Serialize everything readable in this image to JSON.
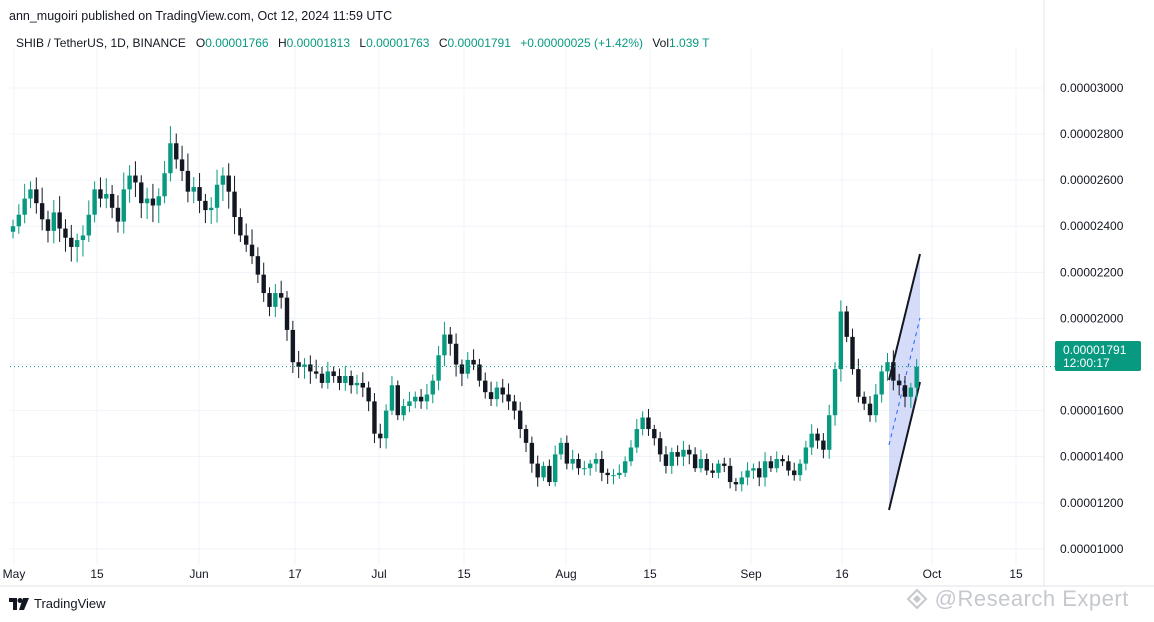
{
  "header": {
    "published": "ann_mugoiri published on TradingView.com, Oct 12, 2024 11:59 UTC"
  },
  "legend": {
    "symbol": "SHIB / TetherUS, 1D, BINANCE",
    "o_label": "O",
    "o_value": "0.00001766",
    "h_label": "H",
    "h_value": "0.00001813",
    "l_label": "L",
    "l_value": "0.00001763",
    "c_label": "C",
    "c_value": "0.00001791",
    "change": "+0.00000025 (+1.42%)",
    "vol_label": "Vol",
    "vol_value": "1.039 T"
  },
  "price_tag": {
    "price": "0.00001791",
    "countdown": "12:00:17",
    "value": 1.791e-05
  },
  "colors": {
    "up": "#089981",
    "down": "#131722",
    "tag": "#089981",
    "grid": "#f0f3fa",
    "channel": "#b7c5f5"
  },
  "footer": {
    "brand": "TradingView",
    "watermark": "@Research Expert"
  },
  "chart_data": {
    "type": "candlestick",
    "y_axis": {
      "ticks": [
        "0.00001000",
        "0.00001200",
        "0.00001400",
        "0.00001600",
        "0.00001800",
        "0.00002000",
        "0.00002200",
        "0.00002400",
        "0.00002600",
        "0.00002800",
        "0.00003000"
      ],
      "ylim": [
        9.3e-06,
        3.13e-05
      ]
    },
    "x_axis": {
      "ticks": [
        "May",
        "15",
        "Jun",
        "17",
        "Jul",
        "15",
        "Aug",
        "15",
        "Sep",
        "16",
        "Oct",
        "15"
      ]
    },
    "grid": true,
    "close_series": [
      2.4e-05,
      2.45e-05,
      2.52e-05,
      2.56e-05,
      2.5e-05,
      2.43e-05,
      2.38e-05,
      2.46e-05,
      2.39e-05,
      2.35e-05,
      2.31e-05,
      2.34e-05,
      2.36e-05,
      2.45e-05,
      2.56e-05,
      2.52e-05,
      2.54e-05,
      2.48e-05,
      2.42e-05,
      2.56e-05,
      2.62e-05,
      2.59e-05,
      2.5e-05,
      2.52e-05,
      2.49e-05,
      2.53e-05,
      2.63e-05,
      2.76e-05,
      2.69e-05,
      2.64e-05,
      2.55e-05,
      2.57e-05,
      2.51e-05,
      2.47e-05,
      2.48e-05,
      2.58e-05,
      2.62e-05,
      2.55e-05,
      2.44e-05,
      2.36e-05,
      2.32e-05,
      2.27e-05,
      2.19e-05,
      2.11e-05,
      2.05e-05,
      2.11e-05,
      2.09e-05,
      1.95e-05,
      1.81e-05,
      1.79e-05,
      1.8e-05,
      1.77e-05,
      1.76e-05,
      1.72e-05,
      1.77e-05,
      1.75e-05,
      1.72e-05,
      1.75e-05,
      1.71e-05,
      1.72e-05,
      1.7e-05,
      1.64e-05,
      1.5e-05,
      1.48e-05,
      1.6e-05,
      1.71e-05,
      1.58e-05,
      1.62e-05,
      1.64e-05,
      1.66e-05,
      1.64e-05,
      1.67e-05,
      1.73e-05,
      1.84e-05,
      1.93e-05,
      1.89e-05,
      1.8e-05,
      1.76e-05,
      1.82e-05,
      1.8e-05,
      1.73e-05,
      1.68e-05,
      1.65e-05,
      1.7e-05,
      1.67e-05,
      1.64e-05,
      1.6e-05,
      1.52e-05,
      1.46e-05,
      1.37e-05,
      1.31e-05,
      1.36e-05,
      1.29e-05,
      1.41e-05,
      1.46e-05,
      1.37e-05,
      1.39e-05,
      1.35e-05,
      1.35e-05,
      1.37e-05,
      1.39e-05,
      1.33e-05,
      1.32e-05,
      1.32e-05,
      1.33e-05,
      1.38e-05,
      1.44e-05,
      1.52e-05,
      1.57e-05,
      1.52e-05,
      1.48e-05,
      1.41e-05,
      1.36e-05,
      1.42e-05,
      1.4e-05,
      1.43e-05,
      1.41e-05,
      1.35e-05,
      1.39e-05,
      1.34e-05,
      1.33e-05,
      1.37e-05,
      1.36e-05,
      1.29e-05,
      1.28e-05,
      1.31e-05,
      1.34e-05,
      1.35e-05,
      1.31e-05,
      1.38e-05,
      1.35e-05,
      1.39e-05,
      1.38e-05,
      1.34e-05,
      1.32e-05,
      1.37e-05,
      1.44e-05,
      1.5e-05,
      1.47e-05,
      1.43e-05,
      1.58e-05,
      1.78e-05,
      2.03e-05,
      1.92e-05,
      1.78e-05,
      1.66e-05,
      1.63e-05,
      1.58e-05,
      1.67e-05,
      1.77e-05,
      1.81e-05,
      1.73e-05,
      1.71e-05,
      1.66e-05,
      1.7e-05,
      1.79e-05
    ],
    "annotation": "rising channel drawn around the late-September rally",
    "last_price": 1.791e-05
  }
}
